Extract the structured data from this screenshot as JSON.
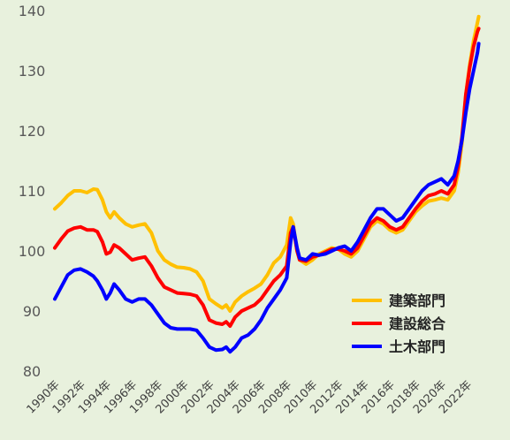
{
  "chart_data": {
    "type": "line",
    "title": "",
    "xlabel": "",
    "ylabel": "",
    "ylim": [
      80,
      140
    ],
    "yticks": [
      80,
      90,
      100,
      110,
      120,
      130,
      140
    ],
    "xticks": [
      "1990年",
      "1992年",
      "1994年",
      "1996年",
      "1998年",
      "2000年",
      "2002年",
      "2004年",
      "2006年",
      "2008年",
      "2010年",
      "2012年",
      "2014年",
      "2016年",
      "2018年",
      "2020年",
      "2022年"
    ],
    "grid": false,
    "legend_position": "bottom-right",
    "background": "#e8f1dd",
    "series": [
      {
        "name": "建築部門",
        "color": "#ffc000",
        "points": [
          [
            1990.0,
            107.0
          ],
          [
            1990.5,
            108.0
          ],
          [
            1991.0,
            109.2
          ],
          [
            1991.5,
            110.0
          ],
          [
            1992.0,
            110.0
          ],
          [
            1992.5,
            109.7
          ],
          [
            1993.0,
            110.3
          ],
          [
            1993.3,
            110.2
          ],
          [
            1993.7,
            108.5
          ],
          [
            1994.0,
            106.5
          ],
          [
            1994.3,
            105.5
          ],
          [
            1994.6,
            106.5
          ],
          [
            1995.0,
            105.5
          ],
          [
            1995.5,
            104.5
          ],
          [
            1996.0,
            104.0
          ],
          [
            1996.5,
            104.3
          ],
          [
            1997.0,
            104.5
          ],
          [
            1997.5,
            103.0
          ],
          [
            1998.0,
            100.0
          ],
          [
            1998.5,
            98.5
          ],
          [
            1999.0,
            97.8
          ],
          [
            1999.5,
            97.3
          ],
          [
            2000.0,
            97.2
          ],
          [
            2000.5,
            97.0
          ],
          [
            2001.0,
            96.5
          ],
          [
            2001.5,
            95.0
          ],
          [
            2002.0,
            92.0
          ],
          [
            2002.5,
            91.2
          ],
          [
            2003.0,
            90.5
          ],
          [
            2003.3,
            91.0
          ],
          [
            2003.6,
            90.0
          ],
          [
            2004.0,
            91.5
          ],
          [
            2004.5,
            92.5
          ],
          [
            2005.0,
            93.2
          ],
          [
            2005.5,
            93.8
          ],
          [
            2006.0,
            94.5
          ],
          [
            2006.5,
            96.0
          ],
          [
            2007.0,
            98.0
          ],
          [
            2007.5,
            99.0
          ],
          [
            2008.0,
            101.0
          ],
          [
            2008.3,
            105.5
          ],
          [
            2008.5,
            104.5
          ],
          [
            2008.8,
            100.0
          ],
          [
            2009.0,
            98.5
          ],
          [
            2009.5,
            97.8
          ],
          [
            2010.0,
            98.5
          ],
          [
            2010.5,
            99.5
          ],
          [
            2011.0,
            100.0
          ],
          [
            2011.5,
            100.5
          ],
          [
            2012.0,
            100.3
          ],
          [
            2012.5,
            99.5
          ],
          [
            2013.0,
            99.0
          ],
          [
            2013.5,
            100.0
          ],
          [
            2014.0,
            102.0
          ],
          [
            2014.5,
            104.0
          ],
          [
            2015.0,
            105.0
          ],
          [
            2015.5,
            104.5
          ],
          [
            2016.0,
            103.5
          ],
          [
            2016.5,
            103.0
          ],
          [
            2017.0,
            103.5
          ],
          [
            2017.5,
            105.0
          ],
          [
            2018.0,
            106.5
          ],
          [
            2018.5,
            107.5
          ],
          [
            2019.0,
            108.3
          ],
          [
            2019.5,
            108.5
          ],
          [
            2020.0,
            108.8
          ],
          [
            2020.5,
            108.5
          ],
          [
            2021.0,
            110.0
          ],
          [
            2021.3,
            113.0
          ],
          [
            2021.6,
            118.0
          ],
          [
            2021.9,
            126.0
          ],
          [
            2022.2,
            131.0
          ],
          [
            2022.5,
            135.0
          ],
          [
            2022.8,
            138.0
          ],
          [
            2022.9,
            139.0
          ]
        ]
      },
      {
        "name": "建設総合",
        "color": "#ff0000",
        "points": [
          [
            1990.0,
            100.5
          ],
          [
            1990.5,
            102.0
          ],
          [
            1991.0,
            103.3
          ],
          [
            1991.5,
            103.8
          ],
          [
            1992.0,
            104.0
          ],
          [
            1992.5,
            103.5
          ],
          [
            1993.0,
            103.5
          ],
          [
            1993.3,
            103.2
          ],
          [
            1993.7,
            101.5
          ],
          [
            1994.0,
            99.5
          ],
          [
            1994.3,
            99.8
          ],
          [
            1994.6,
            101.0
          ],
          [
            1995.0,
            100.5
          ],
          [
            1995.5,
            99.5
          ],
          [
            1996.0,
            98.5
          ],
          [
            1996.5,
            98.8
          ],
          [
            1997.0,
            99.0
          ],
          [
            1997.5,
            97.5
          ],
          [
            1998.0,
            95.5
          ],
          [
            1998.5,
            94.0
          ],
          [
            1999.0,
            93.5
          ],
          [
            1999.5,
            93.0
          ],
          [
            2000.0,
            92.9
          ],
          [
            2000.5,
            92.8
          ],
          [
            2001.0,
            92.5
          ],
          [
            2001.5,
            91.0
          ],
          [
            2002.0,
            88.5
          ],
          [
            2002.5,
            88.0
          ],
          [
            2003.0,
            87.8
          ],
          [
            2003.3,
            88.2
          ],
          [
            2003.6,
            87.5
          ],
          [
            2004.0,
            89.0
          ],
          [
            2004.5,
            90.0
          ],
          [
            2005.0,
            90.5
          ],
          [
            2005.5,
            91.0
          ],
          [
            2006.0,
            92.0
          ],
          [
            2006.5,
            93.5
          ],
          [
            2007.0,
            95.0
          ],
          [
            2007.5,
            96.0
          ],
          [
            2008.0,
            97.5
          ],
          [
            2008.3,
            103.0
          ],
          [
            2008.5,
            104.0
          ],
          [
            2008.8,
            100.0
          ],
          [
            2009.0,
            98.5
          ],
          [
            2009.5,
            98.3
          ],
          [
            2010.0,
            99.0
          ],
          [
            2010.5,
            99.3
          ],
          [
            2011.0,
            99.8
          ],
          [
            2011.5,
            100.3
          ],
          [
            2012.0,
            100.3
          ],
          [
            2012.5,
            100.0
          ],
          [
            2013.0,
            99.5
          ],
          [
            2013.5,
            100.5
          ],
          [
            2014.0,
            102.5
          ],
          [
            2014.5,
            104.5
          ],
          [
            2015.0,
            105.5
          ],
          [
            2015.5,
            105.0
          ],
          [
            2016.0,
            104.0
          ],
          [
            2016.5,
            103.5
          ],
          [
            2017.0,
            104.0
          ],
          [
            2017.5,
            105.5
          ],
          [
            2018.0,
            107.0
          ],
          [
            2018.5,
            108.3
          ],
          [
            2019.0,
            109.2
          ],
          [
            2019.5,
            109.5
          ],
          [
            2020.0,
            110.0
          ],
          [
            2020.5,
            109.5
          ],
          [
            2021.0,
            111.0
          ],
          [
            2021.3,
            114.0
          ],
          [
            2021.6,
            119.0
          ],
          [
            2021.9,
            126.0
          ],
          [
            2022.2,
            130.5
          ],
          [
            2022.5,
            134.0
          ],
          [
            2022.8,
            136.5
          ],
          [
            2022.9,
            137.0
          ]
        ]
      },
      {
        "name": "土木部門",
        "color": "#0000ff",
        "points": [
          [
            1990.0,
            92.0
          ],
          [
            1990.5,
            94.0
          ],
          [
            1991.0,
            96.0
          ],
          [
            1991.5,
            96.8
          ],
          [
            1992.0,
            97.0
          ],
          [
            1992.5,
            96.5
          ],
          [
            1993.0,
            95.8
          ],
          [
            1993.3,
            95.0
          ],
          [
            1993.7,
            93.5
          ],
          [
            1994.0,
            92.0
          ],
          [
            1994.3,
            93.0
          ],
          [
            1994.6,
            94.5
          ],
          [
            1995.0,
            93.5
          ],
          [
            1995.5,
            92.0
          ],
          [
            1996.0,
            91.5
          ],
          [
            1996.5,
            92.0
          ],
          [
            1997.0,
            92.0
          ],
          [
            1997.5,
            91.0
          ],
          [
            1998.0,
            89.5
          ],
          [
            1998.5,
            88.0
          ],
          [
            1999.0,
            87.2
          ],
          [
            1999.5,
            87.0
          ],
          [
            2000.0,
            87.0
          ],
          [
            2000.5,
            87.0
          ],
          [
            2001.0,
            86.8
          ],
          [
            2001.5,
            85.5
          ],
          [
            2002.0,
            84.0
          ],
          [
            2002.5,
            83.5
          ],
          [
            2003.0,
            83.6
          ],
          [
            2003.3,
            84.0
          ],
          [
            2003.6,
            83.2
          ],
          [
            2004.0,
            84.0
          ],
          [
            2004.5,
            85.5
          ],
          [
            2005.0,
            86.0
          ],
          [
            2005.5,
            87.0
          ],
          [
            2006.0,
            88.5
          ],
          [
            2006.5,
            90.5
          ],
          [
            2007.0,
            92.0
          ],
          [
            2007.5,
            93.5
          ],
          [
            2008.0,
            95.5
          ],
          [
            2008.3,
            101.5
          ],
          [
            2008.5,
            104.0
          ],
          [
            2008.8,
            100.5
          ],
          [
            2009.0,
            98.8
          ],
          [
            2009.5,
            98.5
          ],
          [
            2010.0,
            99.5
          ],
          [
            2010.5,
            99.3
          ],
          [
            2011.0,
            99.5
          ],
          [
            2011.5,
            100.0
          ],
          [
            2012.0,
            100.5
          ],
          [
            2012.5,
            100.8
          ],
          [
            2013.0,
            100.0
          ],
          [
            2013.5,
            101.5
          ],
          [
            2014.0,
            103.5
          ],
          [
            2014.5,
            105.5
          ],
          [
            2015.0,
            107.0
          ],
          [
            2015.5,
            107.0
          ],
          [
            2016.0,
            106.0
          ],
          [
            2016.5,
            105.0
          ],
          [
            2017.0,
            105.5
          ],
          [
            2017.5,
            107.0
          ],
          [
            2018.0,
            108.5
          ],
          [
            2018.5,
            110.0
          ],
          [
            2019.0,
            111.0
          ],
          [
            2019.5,
            111.5
          ],
          [
            2020.0,
            112.0
          ],
          [
            2020.5,
            111.0
          ],
          [
            2021.0,
            112.5
          ],
          [
            2021.3,
            115.0
          ],
          [
            2021.6,
            118.5
          ],
          [
            2021.9,
            123.0
          ],
          [
            2022.2,
            127.0
          ],
          [
            2022.5,
            130.0
          ],
          [
            2022.8,
            133.0
          ],
          [
            2022.9,
            134.5
          ]
        ]
      }
    ]
  }
}
